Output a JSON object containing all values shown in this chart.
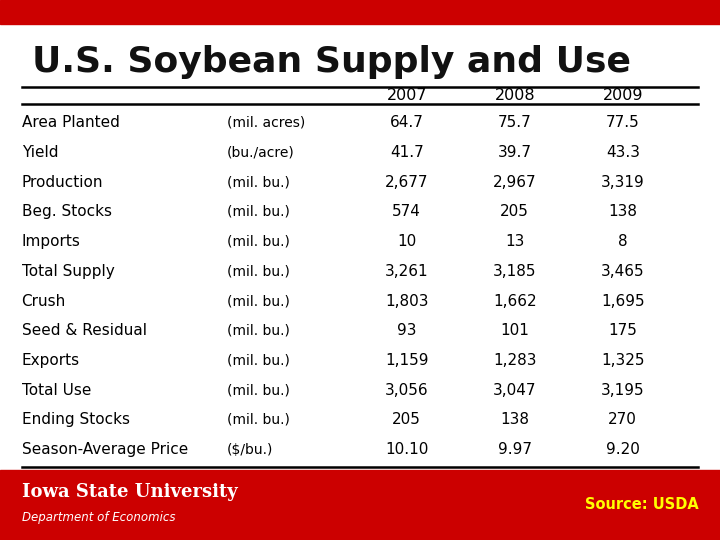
{
  "title": "U.S. Soybean Supply and Use",
  "title_fontsize": 26,
  "title_color": "#111111",
  "background_color": "#ffffff",
  "top_bar_color": "#cc0000",
  "years": [
    "2007",
    "2008",
    "2009"
  ],
  "rows": [
    {
      "label": "Area Planted",
      "unit": "(mil. acres)",
      "values": [
        "64.7",
        "75.7",
        "77.5"
      ]
    },
    {
      "label": "Yield",
      "unit": "(bu./acre)",
      "values": [
        "41.7",
        "39.7",
        "43.3"
      ]
    },
    {
      "label": "Production",
      "unit": "(mil. bu.)",
      "values": [
        "2,677",
        "2,967",
        "3,319"
      ]
    },
    {
      "label": "Beg. Stocks",
      "unit": "(mil. bu.)",
      "values": [
        "574",
        "205",
        "138"
      ]
    },
    {
      "label": "Imports",
      "unit": "(mil. bu.)",
      "values": [
        "10",
        "13",
        "8"
      ]
    },
    {
      "label": "Total Supply",
      "unit": "(mil. bu.)",
      "values": [
        "3,261",
        "3,185",
        "3,465"
      ]
    },
    {
      "label": "Crush",
      "unit": "(mil. bu.)",
      "values": [
        "1,803",
        "1,662",
        "1,695"
      ]
    },
    {
      "label": "Seed & Residual",
      "unit": "(mil. bu.)",
      "values": [
        "93",
        "101",
        "175"
      ]
    },
    {
      "label": "Exports",
      "unit": "(mil. bu.)",
      "values": [
        "1,159",
        "1,283",
        "1,325"
      ]
    },
    {
      "label": "Total Use",
      "unit": "(mil. bu.)",
      "values": [
        "3,056",
        "3,047",
        "3,195"
      ]
    },
    {
      "label": "Ending Stocks",
      "unit": "(mil. bu.)",
      "values": [
        "205",
        "138",
        "270"
      ]
    },
    {
      "label": "Season-Average Price",
      "unit": "($/bu.)",
      "values": [
        "10.10",
        "9.97",
        "9.20"
      ]
    }
  ],
  "iowa_state_color": "#cc0000",
  "source_color": "#ffff00",
  "source_text": "Source: USDA",
  "dept_text": "Department of Economics",
  "iowa_text": "Iowa State University"
}
